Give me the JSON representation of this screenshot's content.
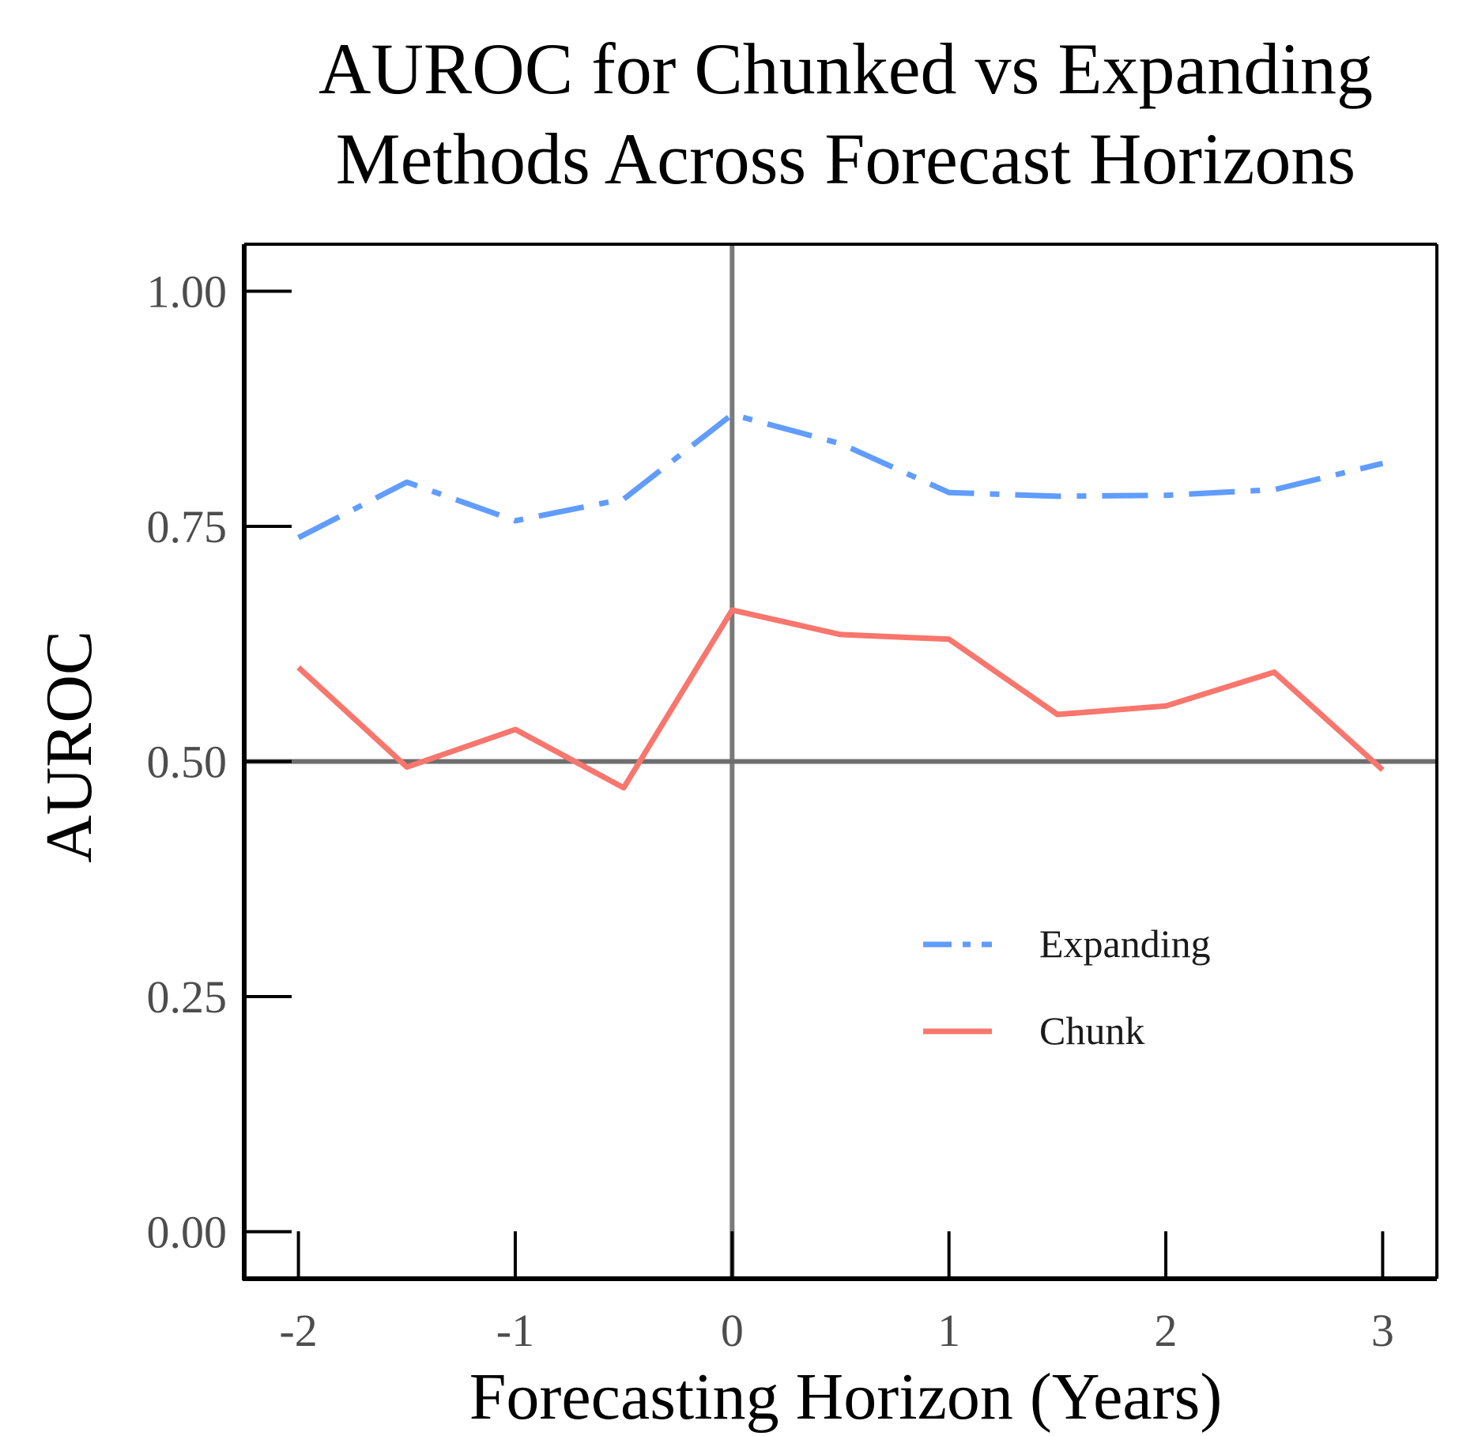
{
  "chart_data": {
    "type": "line",
    "title_lines": [
      "AUROC for Chunked vs Expanding",
      "Methods Across Forecast Horizons"
    ],
    "xlabel": "Forecasting Horizon (Years)",
    "ylabel": "AUROC",
    "x": [
      -2,
      -1.5,
      -1,
      -0.5,
      0,
      0.5,
      1,
      1.5,
      2,
      2.5,
      3
    ],
    "xlim": [
      -2.25,
      3.25
    ],
    "ylim": [
      -0.05,
      1.05
    ],
    "xticks": [
      -2,
      -1,
      0,
      1,
      2,
      3
    ],
    "xtick_labels": [
      "-2",
      "-1",
      "0",
      "1",
      "2",
      "3"
    ],
    "yticks": [
      0,
      0.25,
      0.5,
      0.75,
      1.0
    ],
    "ytick_labels": [
      "0.00",
      "0.25",
      "0.50",
      "0.75",
      "1.00"
    ],
    "reference_lines": {
      "x": 0,
      "y": 0.5
    },
    "grid": false,
    "legend_position": "lower-right",
    "series": [
      {
        "name": "Expanding",
        "style": "dashdot",
        "color": "#619CFF",
        "values": [
          0.738,
          0.797,
          0.756,
          0.779,
          0.869,
          0.838,
          0.786,
          0.782,
          0.783,
          0.789,
          0.817
        ]
      },
      {
        "name": "Chunk",
        "style": "solid",
        "color": "#F8766D",
        "values": [
          0.6,
          0.494,
          0.534,
          0.472,
          0.661,
          0.635,
          0.63,
          0.55,
          0.559,
          0.595,
          0.491
        ]
      }
    ]
  }
}
